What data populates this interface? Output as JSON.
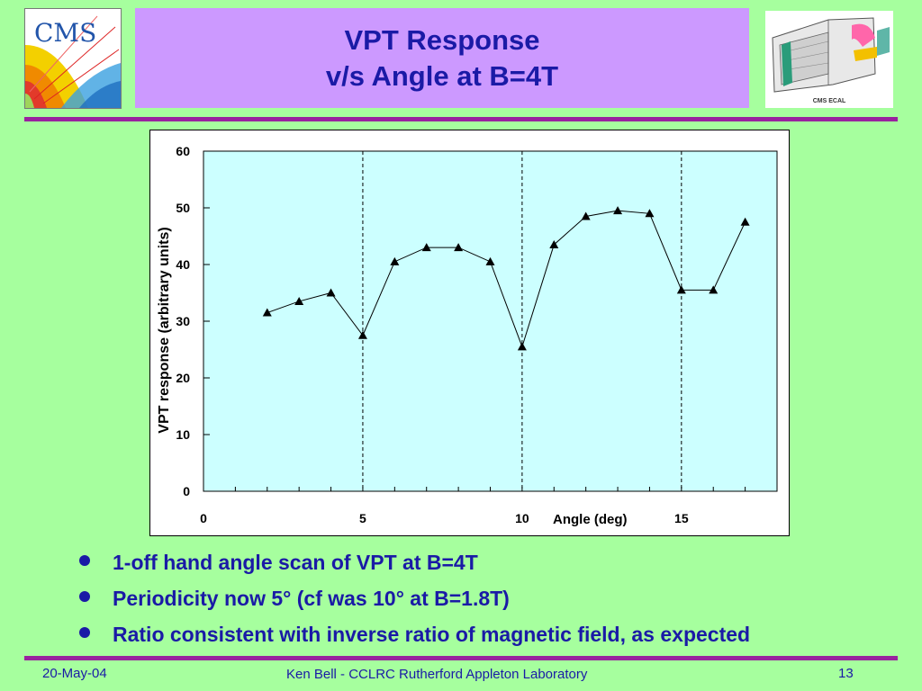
{
  "slide": {
    "title_line1": "VPT Response",
    "title_line2": "v/s Angle at B=4T"
  },
  "logos": {
    "left": {
      "icon": "cms-logo-icon",
      "text": "CMS"
    },
    "right": {
      "icon": "cms-ecal-detector-icon",
      "caption": "CMS ECAL"
    }
  },
  "colors": {
    "background": "#a6ff9e",
    "title_box": "#cc99ff",
    "title_text": "#1a1aa6",
    "rule": "#99239e",
    "plot_area": "#ccffff"
  },
  "chart_data": {
    "type": "line",
    "marker": "triangle",
    "xlabel": "Angle (deg)",
    "ylabel": "VPT response (arbitrary units)",
    "xlim": [
      0,
      18
    ],
    "ylim": [
      0,
      60
    ],
    "x_ticks": [
      0,
      5,
      10,
      15
    ],
    "x_tick_labels": [
      "0",
      "5",
      "10",
      "15"
    ],
    "y_ticks": [
      0,
      10,
      20,
      30,
      40,
      50,
      60
    ],
    "y_tick_labels": [
      "0",
      "10",
      "20",
      "30",
      "40",
      "50",
      "60"
    ],
    "reference_lines_x": [
      5,
      10,
      15
    ],
    "grid": false,
    "series": [
      {
        "x": [
          2,
          3,
          4,
          5,
          6,
          7,
          8,
          9,
          10,
          11,
          12,
          13,
          14,
          15,
          16,
          17
        ],
        "y": [
          31.5,
          33.5,
          35,
          27.5,
          40.5,
          43,
          43,
          40.5,
          25.5,
          43.5,
          48.5,
          49.5,
          49,
          35.5,
          35.5,
          47.5
        ]
      }
    ]
  },
  "bullets": [
    "1-off hand angle scan of VPT at B=4T",
    "Periodicity now 5° (cf was 10° at B=1.8T)",
    "Ratio consistent with inverse ratio of magnetic field, as expected"
  ],
  "footer": {
    "date": "20-May-04",
    "author": "Ken Bell - CCLRC Rutherford Appleton Laboratory",
    "page": "13"
  }
}
